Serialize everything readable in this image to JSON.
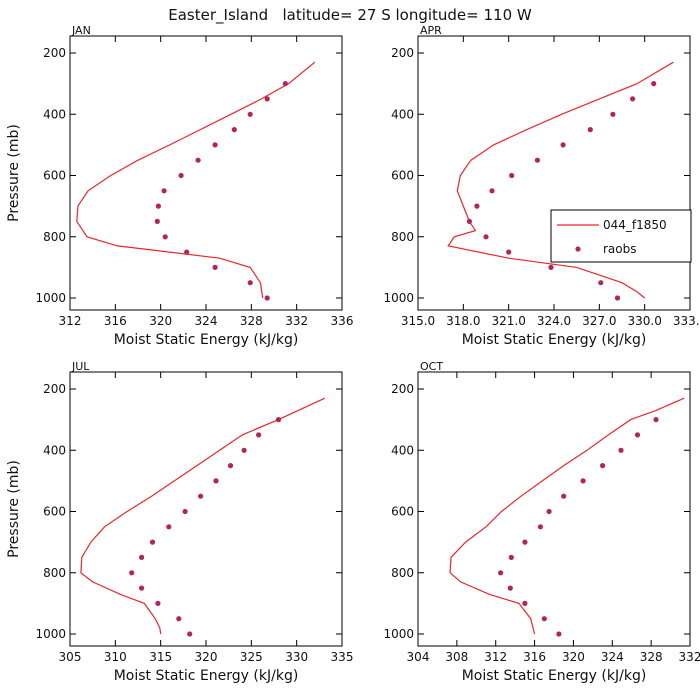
{
  "figure_title": "Easter_Island   latitude= 27 S longitude= 110 W",
  "colors": {
    "model_line": "#e8262a",
    "obs_marker": "#b3245a",
    "axis": "#000000"
  },
  "chart_data": [
    {
      "type": "line",
      "panel": "JAN",
      "xlabel": "Moist Static Energy (kJ/kg)",
      "ylabel": "Pressure (mb)",
      "xlim": [
        312,
        336
      ],
      "xticks": [
        "312",
        "316",
        "320",
        "324",
        "328",
        "332",
        "336"
      ],
      "ylim": [
        1000,
        200
      ],
      "yticks": [
        "200",
        "400",
        "600",
        "800",
        "1000"
      ],
      "legend": null,
      "series": [
        {
          "name": "044_f1850",
          "kind": "line",
          "x": [
            333.6,
            331.3,
            328.9,
            326.2,
            323.5,
            320.8,
            318.0,
            315.6,
            313.6,
            312.7,
            312.6,
            313.5,
            316.2,
            320.8,
            325.2,
            327.9,
            328.8,
            329.0
          ],
          "y": [
            230,
            300,
            350,
            400,
            450,
            500,
            550,
            600,
            650,
            700,
            750,
            800,
            830,
            850,
            870,
            900,
            950,
            1000
          ]
        },
        {
          "name": "raobs",
          "kind": "marker",
          "x": [
            331.0,
            329.4,
            327.9,
            326.5,
            324.8,
            323.3,
            321.8,
            320.3,
            319.8,
            319.7,
            320.4,
            322.3,
            324.8,
            327.9,
            329.4
          ],
          "y": [
            300,
            350,
            400,
            450,
            500,
            550,
            600,
            650,
            700,
            750,
            800,
            850,
            900,
            950,
            1000
          ]
        }
      ]
    },
    {
      "type": "line",
      "panel": "APR",
      "xlabel": "Moist Static Energy (kJ/kg)",
      "ylabel": "",
      "xlim": [
        315.0,
        333.0
      ],
      "xticks": [
        "315.0",
        "318.0",
        "321.0",
        "324.0",
        "327.0",
        "330.0",
        "333.0"
      ],
      "ylim": [
        1000,
        200
      ],
      "yticks": [
        "200",
        "400",
        "600",
        "800",
        "1000"
      ],
      "legend": "right",
      "series": [
        {
          "name": "044_f1850",
          "kind": "line",
          "x": [
            331.9,
            329.5,
            327.0,
            324.5,
            322.2,
            320.0,
            318.5,
            317.8,
            317.6,
            318.0,
            318.4,
            318.8,
            317.4,
            317.0,
            321.0,
            325.5,
            328.5,
            329.5,
            330.0
          ],
          "y": [
            230,
            300,
            350,
            400,
            450,
            500,
            550,
            600,
            650,
            700,
            750,
            780,
            800,
            830,
            870,
            900,
            950,
            980,
            1000
          ]
        },
        {
          "name": "raobs",
          "kind": "marker",
          "x": [
            330.6,
            329.2,
            327.9,
            326.4,
            324.6,
            322.9,
            321.2,
            319.9,
            318.9,
            318.4,
            319.5,
            321.0,
            323.8,
            327.1,
            328.2
          ],
          "y": [
            300,
            350,
            400,
            450,
            500,
            550,
            600,
            650,
            700,
            750,
            800,
            850,
            900,
            950,
            1000
          ]
        }
      ]
    },
    {
      "type": "line",
      "panel": "JUL",
      "xlabel": "Moist Static Energy (kJ/kg)",
      "ylabel": "Pressure (mb)",
      "xlim": [
        305,
        335
      ],
      "xticks": [
        "305",
        "310",
        "315",
        "320",
        "325",
        "330",
        "335"
      ],
      "ylim": [
        1000,
        200
      ],
      "yticks": [
        "200",
        "400",
        "600",
        "800",
        "1000"
      ],
      "legend": null,
      "series": [
        {
          "name": "044_f1850",
          "kind": "line",
          "x": [
            333.1,
            328.0,
            324.0,
            321.5,
            319.0,
            316.5,
            314.0,
            311.3,
            308.8,
            307.3,
            306.3,
            306.2,
            307.5,
            310.5,
            313.2,
            314.4,
            314.9,
            315.0
          ],
          "y": [
            230,
            300,
            350,
            400,
            450,
            500,
            550,
            600,
            650,
            700,
            750,
            800,
            830,
            870,
            900,
            950,
            980,
            1000
          ]
        },
        {
          "name": "raobs",
          "kind": "marker",
          "x": [
            328.0,
            325.8,
            324.2,
            322.7,
            321.1,
            319.4,
            317.7,
            315.9,
            314.1,
            312.9,
            311.8,
            312.9,
            314.7,
            317.0,
            318.2
          ],
          "y": [
            300,
            350,
            400,
            450,
            500,
            550,
            600,
            650,
            700,
            750,
            800,
            850,
            900,
            950,
            1000
          ]
        }
      ]
    },
    {
      "type": "line",
      "panel": "OCT",
      "xlabel": "Moist Static Energy (kJ/kg)",
      "ylabel": "",
      "xlim": [
        304,
        332
      ],
      "xticks": [
        "304",
        "308",
        "312",
        "316",
        "320",
        "324",
        "328",
        "332"
      ],
      "ylim": [
        1000,
        200
      ],
      "yticks": [
        "200",
        "400",
        "600",
        "800",
        "1000"
      ],
      "legend": null,
      "series": [
        {
          "name": "044_f1850",
          "kind": "line",
          "x": [
            331.4,
            328.5,
            325.9,
            323.6,
            321.4,
            319.0,
            316.8,
            314.6,
            312.6,
            311.0,
            308.9,
            307.4,
            307.3,
            308.4,
            311.3,
            314.4,
            315.6,
            316.0
          ],
          "y": [
            230,
            270,
            300,
            350,
            400,
            450,
            500,
            550,
            600,
            650,
            700,
            750,
            800,
            830,
            870,
            900,
            950,
            1000
          ]
        },
        {
          "name": "raobs",
          "kind": "marker",
          "x": [
            328.5,
            326.6,
            324.9,
            323.0,
            321.0,
            319.0,
            317.5,
            316.6,
            315.0,
            313.6,
            312.5,
            313.5,
            315.0,
            317.0,
            318.5
          ],
          "y": [
            300,
            350,
            400,
            450,
            500,
            550,
            600,
            650,
            700,
            750,
            800,
            850,
            900,
            950,
            1000
          ]
        }
      ]
    }
  ]
}
